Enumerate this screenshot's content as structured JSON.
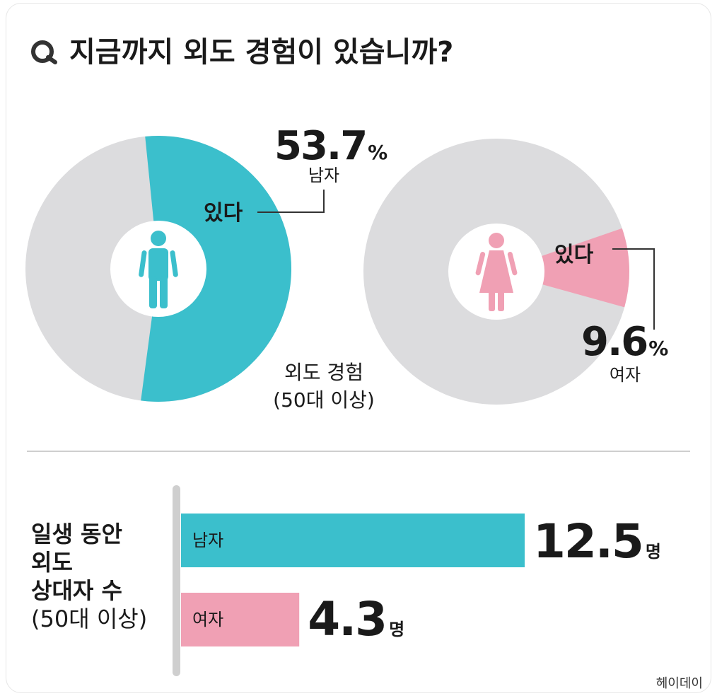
{
  "title": "지금까지 외도 경험이 있습니까?",
  "colors": {
    "male": "#3bbfcc",
    "female": "#f0a0b4",
    "remainder": "#dcdcde",
    "rule": "#bdbdbd",
    "text": "#1a1a1a"
  },
  "chart_data": [
    {
      "type": "pie",
      "subtitle": "외도 경험",
      "subtitle2": "(50대 이상)",
      "donuts": [
        {
          "group": "남자",
          "icon": "male-person-icon",
          "slice_label": "있다",
          "value": 53.7,
          "value_text": "53.7",
          "unit": "%"
        },
        {
          "group": "여자",
          "icon": "female-person-icon",
          "slice_label": "있다",
          "value": 9.6,
          "value_text": "9.6",
          "unit": "%"
        }
      ]
    },
    {
      "type": "bar",
      "title_lines": [
        "일생 동안",
        "외도",
        "상대자 수",
        "(50대 이상)"
      ],
      "categories": [
        "남자",
        "여자"
      ],
      "values": [
        12.5,
        4.3
      ],
      "value_texts": [
        "12.5",
        "4.3"
      ],
      "unit": "명"
    }
  ],
  "source": "헤이데이"
}
